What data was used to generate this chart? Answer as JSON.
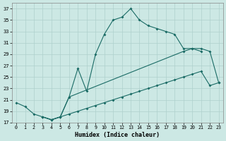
{
  "xlabel": "Humidex (Indice chaleur)",
  "bg_color": "#cce8e4",
  "line_color": "#1a6b65",
  "grid_color": "#aed0cc",
  "xlim": [
    -0.5,
    23.5
  ],
  "ylim": [
    17,
    38
  ],
  "yticks": [
    17,
    19,
    21,
    23,
    25,
    27,
    29,
    31,
    33,
    35,
    37
  ],
  "xticks": [
    0,
    1,
    2,
    3,
    4,
    5,
    6,
    7,
    8,
    9,
    10,
    11,
    12,
    13,
    14,
    15,
    16,
    17,
    18,
    19,
    20,
    21,
    22,
    23
  ],
  "line1_x": [
    0,
    1,
    2,
    3,
    4,
    5,
    6,
    7,
    8,
    9,
    10,
    11,
    12,
    13,
    14,
    15,
    16,
    17,
    18,
    19,
    20,
    21
  ],
  "line1_y": [
    20.5,
    19.8,
    18.5,
    18.0,
    17.5,
    18.0,
    21.5,
    26.5,
    22.5,
    29.0,
    32.5,
    35.0,
    35.5,
    37.0,
    35.0,
    34.0,
    33.5,
    33.0,
    32.5,
    30.0,
    30.0,
    29.5
  ],
  "line2_x": [
    3,
    4,
    5,
    6,
    19,
    20,
    21,
    22,
    23
  ],
  "line2_y": [
    18.0,
    17.5,
    18.0,
    21.5,
    29.5,
    30.0,
    30.0,
    29.5,
    24.0
  ],
  "line3_x": [
    3,
    4,
    5,
    6,
    7,
    8,
    9,
    10,
    11,
    12,
    13,
    14,
    15,
    16,
    17,
    18,
    19,
    20,
    21,
    22,
    23
  ],
  "line3_y": [
    18.0,
    17.5,
    18.0,
    18.5,
    19.0,
    19.5,
    20.0,
    20.5,
    21.0,
    21.5,
    22.0,
    22.5,
    23.0,
    23.5,
    24.0,
    24.5,
    25.0,
    25.5,
    26.0,
    23.5,
    24.0
  ]
}
